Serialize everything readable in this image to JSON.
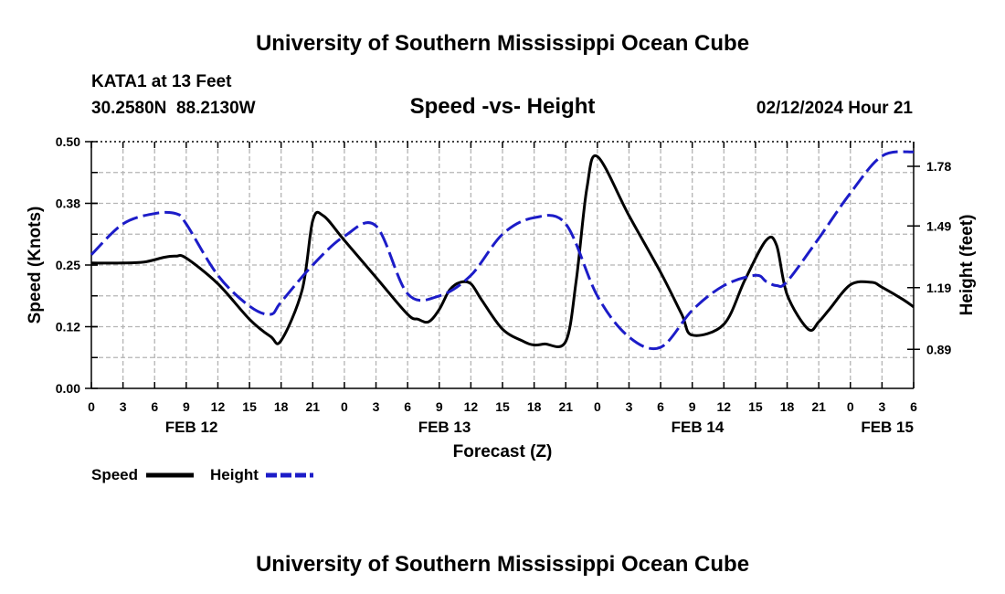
{
  "header": {
    "title": "University of Southern Mississippi Ocean Cube",
    "station": "KATA1 at 13 Feet",
    "coords": "30.2580N  88.2130W",
    "subtitle": "Speed -vs- Height",
    "datetime": "02/12/2024 Hour 21",
    "footer_title": "University of Southern Mississippi Ocean Cube"
  },
  "colors": {
    "speed": "#000000",
    "height": "#1c1cc8",
    "grid": "#b4b4b4"
  },
  "chart_data": {
    "type": "line",
    "title": "Speed -vs- Height",
    "xlabel": "Forecast (Z)",
    "ylabel": "Speed (Knots)",
    "y2label": "Height (feet)",
    "x_hours": [
      0,
      3,
      6,
      9,
      12,
      15,
      18,
      21,
      24,
      27,
      30,
      33,
      36,
      39,
      42,
      45,
      48,
      51,
      54,
      57,
      60,
      63,
      66,
      69,
      72,
      75,
      78
    ],
    "x_tick_labels": [
      "0",
      "3",
      "6",
      "9",
      "12",
      "15",
      "18",
      "21",
      "0",
      "3",
      "6",
      "9",
      "12",
      "15",
      "18",
      "21",
      "0",
      "3",
      "6",
      "9",
      "12",
      "15",
      "18",
      "21",
      "0",
      "3",
      "6"
    ],
    "day_labels": [
      {
        "label": "FEB 12",
        "hour": 9.5
      },
      {
        "label": "FEB 13",
        "hour": 33.5
      },
      {
        "label": "FEB 14",
        "hour": 57.5
      },
      {
        "label": "FEB 15",
        "hour": 75.5
      }
    ],
    "xlim": [
      0,
      78
    ],
    "ylim": [
      0.0,
      0.5
    ],
    "y_ticks": [
      "0.00",
      "0.12",
      "0.25",
      "0.38",
      "0.50"
    ],
    "y2lim": [
      0.7,
      1.9
    ],
    "y2_ticks": [
      "0.89",
      "1.19",
      "1.49",
      "1.78"
    ],
    "grid": true,
    "series": [
      {
        "name": "Speed",
        "axis": "left",
        "style": "solid",
        "x": [
          0,
          3,
          5,
          7,
          8,
          9,
          12,
          15,
          17,
          18,
          20,
          21,
          22,
          24,
          27,
          30,
          31,
          32,
          33,
          34,
          35,
          36,
          37,
          39,
          41,
          42,
          43,
          45,
          46,
          47,
          48,
          51,
          54,
          56,
          57,
          60,
          62,
          64,
          65,
          66,
          68,
          69,
          70,
          72,
          74,
          75,
          77,
          78
        ],
        "values": [
          0.254,
          0.254,
          0.256,
          0.266,
          0.268,
          0.264,
          0.212,
          0.14,
          0.105,
          0.097,
          0.2,
          0.34,
          0.35,
          0.3,
          0.225,
          0.15,
          0.14,
          0.135,
          0.16,
          0.2,
          0.215,
          0.212,
          0.18,
          0.12,
          0.095,
          0.088,
          0.09,
          0.095,
          0.22,
          0.405,
          0.47,
          0.35,
          0.235,
          0.15,
          0.108,
          0.13,
          0.22,
          0.3,
          0.29,
          0.19,
          0.12,
          0.135,
          0.16,
          0.21,
          0.215,
          0.205,
          0.18,
          0.165
        ]
      },
      {
        "name": "Height",
        "axis": "right",
        "style": "dashed",
        "x": [
          0,
          3,
          6,
          8,
          9,
          12,
          15,
          17,
          18,
          21,
          24,
          27,
          30,
          33,
          36,
          39,
          42,
          45,
          48,
          51,
          54,
          57,
          60,
          63,
          64,
          65,
          66,
          69,
          72,
          75,
          78
        ],
        "values": [
          1.35,
          1.5,
          1.55,
          1.55,
          1.5,
          1.25,
          1.1,
          1.06,
          1.12,
          1.3,
          1.44,
          1.49,
          1.16,
          1.15,
          1.25,
          1.45,
          1.53,
          1.5,
          1.15,
          0.95,
          0.9,
          1.08,
          1.2,
          1.25,
          1.22,
          1.2,
          1.22,
          1.43,
          1.65,
          1.83,
          1.85
        ]
      }
    ],
    "legend": [
      {
        "label": "Speed",
        "series": "Speed"
      },
      {
        "label": "Height",
        "series": "Height"
      }
    ],
    "legend_position": "bottom-left"
  }
}
